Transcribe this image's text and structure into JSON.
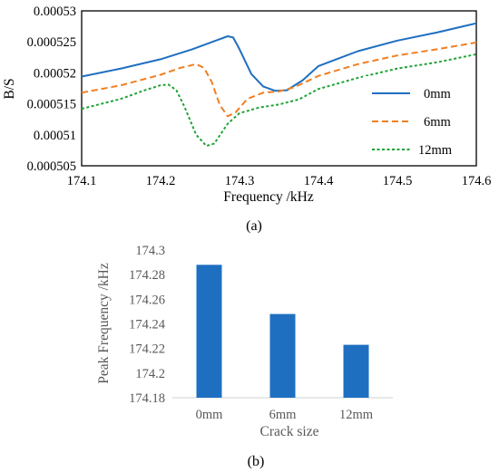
{
  "chart_data": [
    {
      "type": "line",
      "panel_label": "(a)",
      "title": "",
      "xlabel": "Frequency /kHz",
      "ylabel": "B/S",
      "xlim": [
        174.1,
        174.6
      ],
      "ylim": [
        0.000505,
        0.00053
      ],
      "x_ticks": [
        "174.1",
        "174.2",
        "174.3",
        "174.4",
        "174.5",
        "174.6"
      ],
      "y_ticks": [
        "0.000505",
        "0.00051",
        "0.000515",
        "0.00052",
        "0.000525",
        "0.00053"
      ],
      "grid": false,
      "legend_position": "right",
      "series": [
        {
          "name": "0mm",
          "color": "#1f6fc1",
          "dash": "solid",
          "points": [
            [
              174.1,
              0.0005194
            ],
            [
              174.15,
              0.0005207
            ],
            [
              174.2,
              0.0005222
            ],
            [
              174.24,
              0.0005238
            ],
            [
              174.27,
              0.0005252
            ],
            [
              174.285,
              0.0005259
            ],
            [
              174.292,
              0.0005257
            ],
            [
              174.3,
              0.0005238
            ],
            [
              174.315,
              0.0005198
            ],
            [
              174.33,
              0.0005178
            ],
            [
              174.345,
              0.0005171
            ],
            [
              174.36,
              0.0005172
            ],
            [
              174.38,
              0.0005188
            ],
            [
              174.4,
              0.0005211
            ],
            [
              174.45,
              0.0005235
            ],
            [
              174.5,
              0.0005252
            ],
            [
              174.55,
              0.0005265
            ],
            [
              174.6,
              0.000528
            ]
          ]
        },
        {
          "name": "6mm",
          "color": "#f07f22",
          "dash": "dashed",
          "points": [
            [
              174.1,
              0.0005168
            ],
            [
              174.15,
              0.000518
            ],
            [
              174.2,
              0.0005197
            ],
            [
              174.225,
              0.0005208
            ],
            [
              174.245,
              0.0005214
            ],
            [
              174.255,
              0.0005208
            ],
            [
              174.265,
              0.0005185
            ],
            [
              174.275,
              0.0005148
            ],
            [
              174.285,
              0.000513
            ],
            [
              174.295,
              0.0005136
            ],
            [
              174.31,
              0.0005158
            ],
            [
              174.33,
              0.0005168
            ],
            [
              174.35,
              0.000517
            ],
            [
              174.37,
              0.0005177
            ],
            [
              174.4,
              0.0005195
            ],
            [
              174.45,
              0.0005214
            ],
            [
              174.5,
              0.0005228
            ],
            [
              174.55,
              0.0005238
            ],
            [
              174.6,
              0.0005249
            ]
          ]
        },
        {
          "name": "12mm",
          "color": "#1fa337",
          "dash": "dotted",
          "points": [
            [
              174.1,
              0.0005142
            ],
            [
              174.15,
              0.0005158
            ],
            [
              174.18,
              0.0005172
            ],
            [
              174.2,
              0.000518
            ],
            [
              174.21,
              0.0005181
            ],
            [
              174.22,
              0.0005172
            ],
            [
              174.23,
              0.0005146
            ],
            [
              174.245,
              0.00051
            ],
            [
              174.258,
              0.0005082
            ],
            [
              174.268,
              0.0005086
            ],
            [
              174.285,
              0.0005118
            ],
            [
              174.3,
              0.0005135
            ],
            [
              174.325,
              0.0005144
            ],
            [
              174.35,
              0.0005149
            ],
            [
              174.375,
              0.0005157
            ],
            [
              174.4,
              0.0005174
            ],
            [
              174.45,
              0.0005192
            ],
            [
              174.5,
              0.0005207
            ],
            [
              174.55,
              0.0005217
            ],
            [
              174.6,
              0.000523
            ]
          ]
        }
      ]
    },
    {
      "type": "bar",
      "panel_label": "(b)",
      "title": "",
      "xlabel": "Crack size",
      "ylabel": "Peak Frequency /kHz",
      "categories": [
        "0mm",
        "6mm",
        "12mm"
      ],
      "values": [
        174.288,
        174.248,
        174.223
      ],
      "ylim": [
        174.18,
        174.3
      ],
      "y_ticks": [
        "174.3",
        "174.28",
        "174.26",
        "174.24",
        "174.22",
        "174.2",
        "174.18"
      ],
      "grid": false,
      "bar_color": "#1f6fc1"
    }
  ]
}
